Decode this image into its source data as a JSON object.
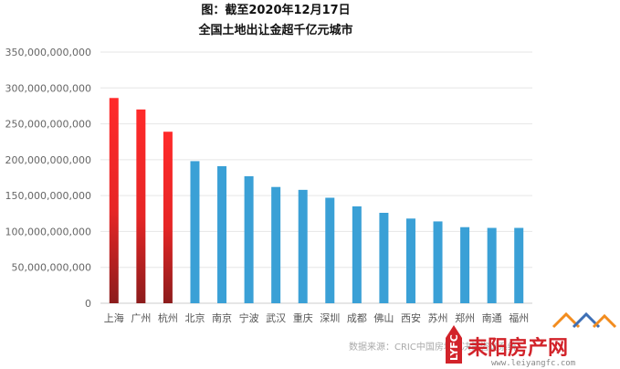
{
  "chart_data": {
    "type": "bar",
    "title": "图：截至2020年12月17日",
    "subtitle": "全国土地出让金超千亿元城市",
    "categories": [
      "上海",
      "广州",
      "杭州",
      "北京",
      "南京",
      "宁波",
      "武汉",
      "重庆",
      "深圳",
      "成都",
      "佛山",
      "西安",
      "苏州",
      "郑州",
      "南通",
      "福州"
    ],
    "values": [
      286000000000,
      270000000000,
      239000000000,
      198000000000,
      191000000000,
      177000000000,
      162000000000,
      158000000000,
      147000000000,
      135000000000,
      126000000000,
      118000000000,
      114000000000,
      106000000000,
      105000000000,
      105000000000
    ],
    "highlight": [
      true,
      true,
      true,
      false,
      false,
      false,
      false,
      false,
      false,
      false,
      false,
      false,
      false,
      false,
      false,
      false
    ],
    "y_ticks": [
      "0",
      "50,000,000,000",
      "100,000,000,000",
      "150,000,000,000",
      "200,000,000,000",
      "250,000,000,000",
      "300,000,000,000",
      "350,000,000,000"
    ],
    "ylim": [
      0,
      350000000000
    ],
    "grid": true,
    "legend": "none",
    "colors": {
      "bar": "#3aa0d6",
      "highlight_top": "#ff2a2a",
      "highlight_bottom": "#8c1c1c",
      "grid": "#e6e6e6",
      "axis": "#cccccc"
    }
  },
  "source": "数据来源：CRIC中国房地产决策咨询系统",
  "watermark": {
    "badge": "LYFC",
    "name": "耒阳房产网",
    "url": "www.leiyangfc.com"
  }
}
